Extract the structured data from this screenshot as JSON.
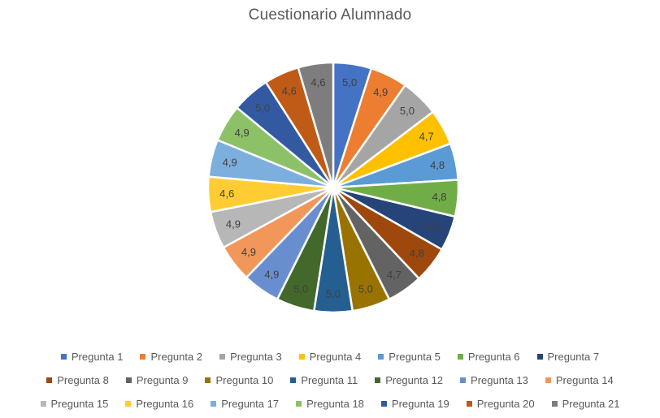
{
  "chart_data": {
    "type": "pie",
    "title": "Cuestionario Alumnado",
    "categories": [
      "Pregunta 1",
      "Pregunta 2",
      "Pregunta 3",
      "Pregunta 4",
      "Pregunta 5",
      "Pregunta 6",
      "Pregunta 7",
      "Pregunta 8",
      "Pregunta 9",
      "Pregunta 10",
      "Pregunta 11",
      "Pregunta 12",
      "Pregunta 13",
      "Pregunta 14",
      "Pregunta 15",
      "Pregunta 16",
      "Pregunta 17",
      "Pregunta 18",
      "Pregunta 19",
      "Pregunta 20",
      "Pregunta 21"
    ],
    "values": [
      5.0,
      4.9,
      5.0,
      4.7,
      4.8,
      4.8,
      4.6,
      4.8,
      4.7,
      5.0,
      5.0,
      5.0,
      4.9,
      4.9,
      4.9,
      4.6,
      4.9,
      4.9,
      5.0,
      4.6,
      4.6
    ],
    "value_labels": [
      "5,0",
      "4,9",
      "5,0",
      "4,7",
      "4,8",
      "4,8",
      "4,6",
      "4,8",
      "4,7",
      "5,0",
      "5,0",
      "5,0",
      "4,9",
      "4,9",
      "4,9",
      "4,6",
      "4,9",
      "4,9",
      "5,0",
      "4,6",
      "4,6"
    ],
    "colors": [
      "#4472C4",
      "#ED7D31",
      "#A5A5A5",
      "#FFC000",
      "#5B9BD5",
      "#70AD47",
      "#264478",
      "#9E480E",
      "#636363",
      "#997300",
      "#255E91",
      "#43682B",
      "#698ED0",
      "#F1975A",
      "#B7B7B7",
      "#FFCD33",
      "#7CAFDD",
      "#8CC168",
      "#335AA1",
      "#BF5B17",
      "#7D7D7D"
    ],
    "start_angle_deg": 0,
    "direction": "clockwise",
    "slice_border_color": "#FFFFFF",
    "label_position": "inside-end",
    "label_color": "#404040",
    "title_color": "#595959",
    "legend_position": "bottom",
    "legend_rows": [
      7,
      7,
      7
    ],
    "legend_text_color": "#595959",
    "background_color": "#FFFFFF"
  }
}
